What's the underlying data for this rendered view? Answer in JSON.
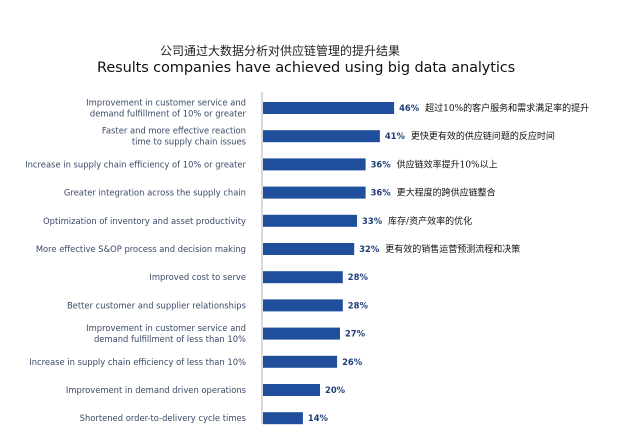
{
  "title_cn": "公司通过大数据分析对供应链管理的提升结果",
  "title_en": "Results companies have achieved using big data analytics",
  "colors": {
    "bar": "#1f4e9c",
    "axis": "#9aa3b0"
  },
  "chart_data": {
    "type": "bar",
    "orientation": "horizontal",
    "xlim": [
      0,
      50
    ],
    "categories": [
      [
        "Improvement in customer service and",
        "demand fulfillment of 10% or greater"
      ],
      [
        "Faster and more effective reaction",
        "time to supply chain issues"
      ],
      [
        "Increase in supply chain efficiency of 10% or greater"
      ],
      [
        "Greater integration across the supply chain"
      ],
      [
        "Optimization of inventory and asset productivity"
      ],
      [
        "More effective S&OP process and decision making"
      ],
      [
        "Improved cost to serve"
      ],
      [
        "Better customer and supplier relationships"
      ],
      [
        "Improvement in customer service and",
        "demand fulfillment of less than 10%"
      ],
      [
        "Increase in supply chain efficiency of less than 10%"
      ],
      [
        "Improvement in demand driven operations"
      ],
      [
        "Shortened order-to-delivery cycle times"
      ]
    ],
    "values": [
      46,
      41,
      36,
      36,
      33,
      32,
      28,
      28,
      27,
      26,
      20,
      14
    ],
    "value_labels": [
      "46%",
      "41%",
      "36%",
      "36%",
      "33%",
      "32%",
      "28%",
      "28%",
      "27%",
      "26%",
      "20%",
      "14%"
    ],
    "annotations_cn": [
      "超过10%的客户服务和需求满足率的提升",
      "更快更有效的供应链问题的反应时间",
      "供应链效率提升10%以上",
      "更大程度的跨供应链整合",
      "库存/资产效率的优化",
      "更有效的销售运营预测流程和决策",
      "",
      "",
      "",
      "",
      "",
      ""
    ]
  }
}
